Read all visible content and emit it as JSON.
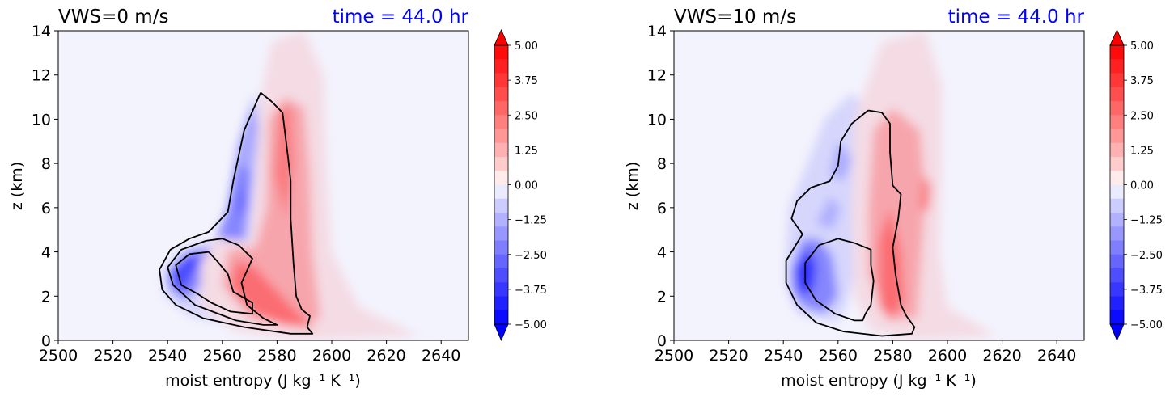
{
  "colors": {
    "background_field": "#f3f3fd",
    "negative_max": "#0000ff",
    "positive_max": "#ff0000",
    "time_title": "#0000ff",
    "contour_line": "#000000"
  },
  "chart_data": [
    {
      "type": "contour",
      "title_left": "VWS=0 m/s",
      "title_right": "time = 44.0 hr",
      "xlabel": "moist entropy (J kg⁻¹ K⁻¹)",
      "ylabel": "z (km)",
      "xlim": [
        2500,
        2650
      ],
      "ylim": [
        0,
        14
      ],
      "x_ticks": [
        "2500",
        "2520",
        "2540",
        "2560",
        "2580",
        "2600",
        "2620",
        "2640"
      ],
      "y_ticks": [
        "0",
        "2",
        "4",
        "6",
        "8",
        "10",
        "12",
        "14"
      ],
      "colorbar": {
        "range": [
          -5.0,
          5.0
        ],
        "tick_labels": [
          "5.00",
          "3.75",
          "2.50",
          "1.25",
          "0.00",
          "−1.25",
          "−2.50",
          "−3.75",
          "−5.00"
        ],
        "extend": "both"
      },
      "blobs": [
        {
          "sign": "neg",
          "level": 0.12,
          "points": [
            [
              2538,
              3.0
            ],
            [
              2545,
              4.1
            ],
            [
              2560,
              4.6
            ],
            [
              2563,
              6.2
            ],
            [
              2567,
              9.5
            ],
            [
              2571,
              11.1
            ],
            [
              2577,
              10.4
            ],
            [
              2575,
              7.5
            ],
            [
              2574,
              4.6
            ],
            [
              2582,
              2.2
            ],
            [
              2592,
              0.5
            ],
            [
              2573,
              0.45
            ],
            [
              2548,
              1.1
            ],
            [
              2539,
              2.0
            ]
          ]
        },
        {
          "sign": "neg",
          "level": 0.45,
          "points": [
            [
              2540,
              3.1
            ],
            [
              2547,
              4.0
            ],
            [
              2557,
              4.3
            ],
            [
              2562,
              6.0
            ],
            [
              2566,
              8.8
            ],
            [
              2571,
              10.6
            ],
            [
              2573,
              9.5
            ],
            [
              2570,
              6.5
            ],
            [
              2568,
              4.2
            ],
            [
              2560,
              3.5
            ],
            [
              2552,
              2.4
            ],
            [
              2546,
              1.8
            ],
            [
              2541,
              2.3
            ]
          ]
        },
        {
          "sign": "neg",
          "level": 0.7,
          "points": [
            [
              2541,
              3.1
            ],
            [
              2547,
              3.8
            ],
            [
              2553,
              3.7
            ],
            [
              2549,
              3.0
            ],
            [
              2546,
              2.2
            ],
            [
              2542,
              2.4
            ]
          ]
        },
        {
          "sign": "neg",
          "level": 0.55,
          "points": [
            [
              2565,
              6.2
            ],
            [
              2568,
              7.2
            ],
            [
              2570,
              6.2
            ],
            [
              2567,
              5.5
            ]
          ]
        },
        {
          "sign": "neg",
          "level": 0.3,
          "points": [
            [
              2566,
              8.0
            ],
            [
              2570,
              10.2
            ],
            [
              2573,
              9.0
            ],
            [
              2571,
              7.6
            ]
          ]
        },
        {
          "sign": "pos",
          "level": 0.1,
          "points": [
            [
              2558,
              4.6
            ],
            [
              2570,
              4.5
            ],
            [
              2572,
              7.0
            ],
            [
              2574,
              11.0
            ],
            [
              2578,
              13.5
            ],
            [
              2590,
              14.0
            ],
            [
              2597,
              12.0
            ],
            [
              2598,
              8.0
            ],
            [
              2600,
              4.0
            ],
            [
              2610,
              1.5
            ],
            [
              2632,
              0.2
            ],
            [
              2590,
              0.0
            ],
            [
              2565,
              0.4
            ],
            [
              2552,
              1.5
            ],
            [
              2552,
              3.5
            ]
          ]
        },
        {
          "sign": "pos",
          "level": 0.32,
          "points": [
            [
              2562,
              4.1
            ],
            [
              2572,
              4.2
            ],
            [
              2576,
              6.0
            ],
            [
              2577,
              10.0
            ],
            [
              2583,
              11.0
            ],
            [
              2590,
              10.5
            ],
            [
              2592,
              7.5
            ],
            [
              2593,
              4.0
            ],
            [
              2596,
              1.0
            ],
            [
              2585,
              0.6
            ],
            [
              2570,
              1.0
            ],
            [
              2560,
              2.5
            ]
          ]
        },
        {
          "sign": "pos",
          "level": 0.55,
          "points": [
            [
              2565,
              3.6
            ],
            [
              2572,
              3.3
            ],
            [
              2578,
              2.5
            ],
            [
              2588,
              1.2
            ],
            [
              2594,
              0.5
            ],
            [
              2583,
              0.7
            ],
            [
              2572,
              1.2
            ],
            [
              2563,
              2.4
            ]
          ]
        },
        {
          "sign": "pos",
          "level": 0.5,
          "points": [
            [
              2579,
              7.5
            ],
            [
              2581,
              10.5
            ],
            [
              2585,
              10.6
            ],
            [
              2586,
              8.0
            ],
            [
              2583,
              5.5
            ]
          ]
        }
      ],
      "contours": [
        [
          [
            2574,
            11.2
          ],
          [
            2568,
            9.5
          ],
          [
            2564,
            7.2
          ],
          [
            2562,
            5.8
          ],
          [
            2555,
            4.9
          ],
          [
            2548,
            4.6
          ],
          [
            2541,
            4.1
          ],
          [
            2537,
            3.2
          ],
          [
            2538,
            2.3
          ],
          [
            2543,
            1.6
          ],
          [
            2553,
            1.0
          ],
          [
            2568,
            0.6
          ],
          [
            2585,
            0.3
          ],
          [
            2593,
            0.3
          ],
          [
            2591,
            0.6
          ],
          [
            2592,
            1.1
          ],
          [
            2589,
            1.4
          ],
          [
            2587,
            2.0
          ],
          [
            2586,
            3.5
          ],
          [
            2585,
            5.5
          ],
          [
            2585,
            7.2
          ],
          [
            2584,
            8.3
          ],
          [
            2582,
            10.3
          ],
          [
            2578,
            10.8
          ],
          [
            2574,
            11.2
          ]
        ],
        [
          [
            2554,
            4.5
          ],
          [
            2545,
            4.1
          ],
          [
            2540,
            3.3
          ],
          [
            2542,
            2.5
          ],
          [
            2550,
            1.6
          ],
          [
            2565,
            0.9
          ],
          [
            2575,
            0.7
          ],
          [
            2580,
            0.7
          ],
          [
            2575,
            1.0
          ],
          [
            2569,
            1.6
          ],
          [
            2567,
            2.6
          ],
          [
            2571,
            3.7
          ],
          [
            2566,
            4.3
          ],
          [
            2560,
            4.6
          ],
          [
            2554,
            4.5
          ]
        ],
        [
          [
            2555,
            4.0
          ],
          [
            2548,
            3.9
          ],
          [
            2543,
            3.4
          ],
          [
            2545,
            2.5
          ],
          [
            2551,
            2.1
          ],
          [
            2556,
            1.7
          ],
          [
            2563,
            1.3
          ],
          [
            2571,
            1.2
          ],
          [
            2571,
            1.7
          ],
          [
            2564,
            2.2
          ],
          [
            2562,
            3.0
          ],
          [
            2558,
            3.6
          ],
          [
            2555,
            4.0
          ]
        ]
      ]
    },
    {
      "type": "contour",
      "title_left": "VWS=10 m/s",
      "title_right": "time = 44.0 hr",
      "xlabel": "moist entropy (J kg⁻¹ K⁻¹)",
      "ylabel": "z (km)",
      "xlim": [
        2500,
        2650
      ],
      "ylim": [
        0,
        14
      ],
      "x_ticks": [
        "2500",
        "2520",
        "2540",
        "2560",
        "2580",
        "2600",
        "2620",
        "2640"
      ],
      "y_ticks": [
        "0",
        "2",
        "4",
        "6",
        "8",
        "10",
        "12",
        "14"
      ],
      "colorbar": {
        "range": [
          -5.0,
          5.0
        ],
        "tick_labels": [
          "5.00",
          "3.75",
          "2.50",
          "1.25",
          "0.00",
          "−1.25",
          "−2.50",
          "−3.75",
          "−5.00"
        ],
        "extend": "both"
      },
      "blobs": [
        {
          "sign": "neg",
          "level": 0.12,
          "points": [
            [
              2541,
              4.0
            ],
            [
              2542,
              6.0
            ],
            [
              2548,
              7.8
            ],
            [
              2555,
              10.0
            ],
            [
              2565,
              11.2
            ],
            [
              2570,
              10.5
            ],
            [
              2566,
              8.0
            ],
            [
              2568,
              5.0
            ],
            [
              2566,
              3.0
            ],
            [
              2563,
              1.5
            ],
            [
              2560,
              0.8
            ],
            [
              2545,
              1.2
            ],
            [
              2541,
              2.5
            ]
          ]
        },
        {
          "sign": "neg",
          "level": 0.45,
          "points": [
            [
              2543,
              3.3
            ],
            [
              2547,
              4.6
            ],
            [
              2553,
              4.6
            ],
            [
              2558,
              3.8
            ],
            [
              2560,
              2.0
            ],
            [
              2555,
              1.2
            ],
            [
              2547,
              1.5
            ],
            [
              2543,
              2.3
            ]
          ]
        },
        {
          "sign": "neg",
          "level": 0.8,
          "points": [
            [
              2544,
              3.2
            ],
            [
              2549,
              4.2
            ],
            [
              2552,
              3.4
            ],
            [
              2551,
              2.3
            ],
            [
              2546,
              2.0
            ]
          ]
        },
        {
          "sign": "neg",
          "level": 0.3,
          "points": [
            [
              2557,
              7.5
            ],
            [
              2560,
              9.0
            ],
            [
              2565,
              8.2
            ],
            [
              2562,
              7.2
            ]
          ]
        },
        {
          "sign": "neg",
          "level": 0.28,
          "points": [
            [
              2552,
              5.3
            ],
            [
              2557,
              6.5
            ],
            [
              2561,
              6.0
            ],
            [
              2558,
              5.0
            ]
          ]
        },
        {
          "sign": "pos",
          "level": 0.1,
          "points": [
            [
              2566,
              2.0
            ],
            [
              2565,
              5.5
            ],
            [
              2566,
              10.0
            ],
            [
              2576,
              13.5
            ],
            [
              2592,
              14.0
            ],
            [
              2598,
              11.5
            ],
            [
              2598,
              8.0
            ],
            [
              2597,
              4.0
            ],
            [
              2600,
              1.5
            ],
            [
              2618,
              0.2
            ],
            [
              2590,
              0.0
            ],
            [
              2572,
              0.4
            ]
          ]
        },
        {
          "sign": "pos",
          "level": 0.32,
          "points": [
            [
              2571,
              3.0
            ],
            [
              2571,
              6.0
            ],
            [
              2573,
              9.5
            ],
            [
              2580,
              10.5
            ],
            [
              2590,
              9.5
            ],
            [
              2592,
              6.5
            ],
            [
              2590,
              3.0
            ],
            [
              2589,
              1.0
            ],
            [
              2578,
              0.9
            ]
          ]
        },
        {
          "sign": "pos",
          "level": 0.55,
          "points": [
            [
              2575,
              1.5
            ],
            [
              2575,
              4.5
            ],
            [
              2579,
              6.0
            ],
            [
              2583,
              4.0
            ],
            [
              2584,
              1.8
            ],
            [
              2580,
              1.0
            ]
          ]
        },
        {
          "sign": "pos",
          "level": 0.5,
          "points": [
            [
              2590,
              6.0
            ],
            [
              2591,
              7.5
            ],
            [
              2594,
              7.0
            ],
            [
              2593,
              5.8
            ]
          ]
        }
      ],
      "contours": [
        [
          [
            2571,
            10.4
          ],
          [
            2565,
            9.8
          ],
          [
            2561,
            9.0
          ],
          [
            2560,
            7.9
          ],
          [
            2557,
            7.2
          ],
          [
            2550,
            6.9
          ],
          [
            2545,
            6.3
          ],
          [
            2543,
            5.5
          ],
          [
            2547,
            4.8
          ],
          [
            2545,
            4.4
          ],
          [
            2541,
            3.6
          ],
          [
            2541,
            2.6
          ],
          [
            2545,
            1.6
          ],
          [
            2552,
            0.8
          ],
          [
            2562,
            0.4
          ],
          [
            2576,
            0.2
          ],
          [
            2587,
            0.3
          ],
          [
            2588,
            0.6
          ],
          [
            2585,
            1.1
          ],
          [
            2583,
            1.6
          ],
          [
            2581,
            3.0
          ],
          [
            2580,
            4.2
          ],
          [
            2582,
            5.5
          ],
          [
            2583,
            6.6
          ],
          [
            2580,
            7.0
          ],
          [
            2579,
            8.5
          ],
          [
            2579,
            9.8
          ],
          [
            2576,
            10.3
          ],
          [
            2571,
            10.4
          ]
        ],
        [
          [
            2560,
            4.6
          ],
          [
            2553,
            4.3
          ],
          [
            2548,
            3.5
          ],
          [
            2548,
            2.6
          ],
          [
            2552,
            1.8
          ],
          [
            2559,
            1.2
          ],
          [
            2566,
            0.9
          ],
          [
            2569,
            0.9
          ],
          [
            2570,
            1.2
          ],
          [
            2572,
            1.6
          ],
          [
            2573,
            2.7
          ],
          [
            2572,
            3.4
          ],
          [
            2572,
            4.1
          ],
          [
            2566,
            4.4
          ],
          [
            2560,
            4.6
          ]
        ]
      ]
    }
  ]
}
